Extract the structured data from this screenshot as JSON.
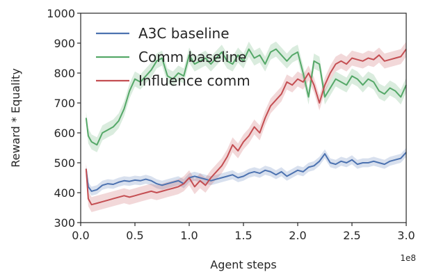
{
  "chart_data": {
    "type": "line",
    "xlabel": "Agent steps",
    "ylabel": "Reward * Equality",
    "x_offset_label": "1e8",
    "xlim": [
      0.0,
      3.0
    ],
    "ylim": [
      300,
      1000
    ],
    "x_ticks": [
      0.0,
      0.5,
      1.0,
      1.5,
      2.0,
      2.5,
      3.0
    ],
    "x_tick_labels": [
      "0.0",
      "0.5",
      "1.0",
      "1.5",
      "2.0",
      "2.5",
      "3.0"
    ],
    "y_ticks": [
      300,
      400,
      500,
      600,
      700,
      800,
      900,
      1000
    ],
    "y_tick_labels": [
      "300",
      "400",
      "500",
      "600",
      "700",
      "800",
      "900",
      "1000"
    ],
    "grid": false,
    "legend": "top-left",
    "series": [
      {
        "name": "A3C baseline",
        "color": "#4c72b0",
        "x": [
          0.05,
          0.07,
          0.1,
          0.15,
          0.2,
          0.25,
          0.3,
          0.35,
          0.4,
          0.45,
          0.5,
          0.55,
          0.6,
          0.65,
          0.7,
          0.75,
          0.8,
          0.85,
          0.9,
          0.95,
          1.0,
          1.05,
          1.1,
          1.15,
          1.2,
          1.25,
          1.3,
          1.35,
          1.4,
          1.45,
          1.5,
          1.55,
          1.6,
          1.65,
          1.7,
          1.75,
          1.8,
          1.85,
          1.9,
          1.95,
          2.0,
          2.05,
          2.1,
          2.15,
          2.2,
          2.25,
          2.3,
          2.35,
          2.4,
          2.45,
          2.5,
          2.55,
          2.6,
          2.65,
          2.7,
          2.75,
          2.8,
          2.85,
          2.9,
          2.95,
          3.0
        ],
        "values": [
          480,
          420,
          405,
          410,
          425,
          430,
          428,
          435,
          440,
          438,
          442,
          440,
          445,
          440,
          430,
          425,
          430,
          435,
          440,
          430,
          450,
          455,
          450,
          445,
          440,
          445,
          450,
          455,
          460,
          450,
          455,
          465,
          470,
          465,
          475,
          470,
          460,
          470,
          455,
          465,
          475,
          470,
          485,
          490,
          505,
          530,
          500,
          495,
          505,
          500,
          510,
          495,
          500,
          500,
          505,
          500,
          495,
          505,
          510,
          515,
          535
        ],
        "band": [
          12,
          15,
          15,
          15,
          15,
          15,
          15,
          15,
          15,
          15,
          15,
          15,
          15,
          15,
          15,
          15,
          15,
          15,
          15,
          15,
          15,
          15,
          15,
          15,
          15,
          15,
          15,
          15,
          15,
          15,
          15,
          15,
          15,
          15,
          15,
          15,
          15,
          15,
          15,
          15,
          15,
          15,
          15,
          15,
          15,
          15,
          15,
          15,
          15,
          15,
          15,
          15,
          15,
          15,
          15,
          15,
          15,
          15,
          15,
          15,
          15
        ]
      },
      {
        "name": "Comm baseline",
        "color": "#55a868",
        "x": [
          0.05,
          0.07,
          0.1,
          0.15,
          0.2,
          0.25,
          0.3,
          0.35,
          0.4,
          0.45,
          0.5,
          0.55,
          0.6,
          0.65,
          0.7,
          0.75,
          0.8,
          0.85,
          0.9,
          0.95,
          1.0,
          1.05,
          1.1,
          1.15,
          1.2,
          1.25,
          1.3,
          1.35,
          1.4,
          1.45,
          1.5,
          1.55,
          1.6,
          1.65,
          1.7,
          1.75,
          1.8,
          1.85,
          1.9,
          1.95,
          2.0,
          2.05,
          2.1,
          2.15,
          2.2,
          2.25,
          2.3,
          2.35,
          2.4,
          2.45,
          2.5,
          2.55,
          2.6,
          2.65,
          2.7,
          2.75,
          2.8,
          2.85,
          2.9,
          2.95,
          3.0
        ],
        "values": [
          650,
          590,
          570,
          560,
          600,
          610,
          620,
          640,
          680,
          740,
          780,
          770,
          790,
          810,
          840,
          850,
          790,
          780,
          800,
          790,
          860,
          830,
          840,
          850,
          830,
          850,
          870,
          840,
          830,
          860,
          840,
          880,
          850,
          860,
          830,
          870,
          880,
          860,
          840,
          860,
          870,
          800,
          720,
          840,
          830,
          720,
          750,
          780,
          770,
          760,
          790,
          780,
          760,
          780,
          770,
          740,
          730,
          750,
          740,
          720,
          760
        ],
        "band": [
          20,
          25,
          25,
          25,
          25,
          25,
          25,
          25,
          25,
          25,
          25,
          25,
          25,
          25,
          25,
          25,
          25,
          25,
          25,
          25,
          25,
          25,
          25,
          25,
          25,
          25,
          25,
          25,
          25,
          25,
          25,
          25,
          25,
          25,
          25,
          25,
          25,
          25,
          25,
          25,
          25,
          25,
          25,
          25,
          25,
          25,
          25,
          25,
          25,
          25,
          25,
          25,
          25,
          25,
          25,
          25,
          25,
          25,
          25,
          25,
          25
        ]
      },
      {
        "name": "Influence comm",
        "color": "#c44e52",
        "x": [
          0.05,
          0.07,
          0.1,
          0.15,
          0.2,
          0.25,
          0.3,
          0.35,
          0.4,
          0.45,
          0.5,
          0.55,
          0.6,
          0.65,
          0.7,
          0.75,
          0.8,
          0.85,
          0.9,
          0.95,
          1.0,
          1.05,
          1.1,
          1.15,
          1.2,
          1.25,
          1.3,
          1.35,
          1.4,
          1.45,
          1.5,
          1.55,
          1.6,
          1.65,
          1.7,
          1.75,
          1.8,
          1.85,
          1.9,
          1.95,
          2.0,
          2.05,
          2.1,
          2.15,
          2.2,
          2.25,
          2.3,
          2.35,
          2.4,
          2.45,
          2.5,
          2.55,
          2.6,
          2.65,
          2.7,
          2.75,
          2.8,
          2.85,
          2.9,
          2.95,
          3.0
        ],
        "values": [
          480,
          380,
          360,
          365,
          370,
          375,
          380,
          385,
          390,
          385,
          390,
          395,
          400,
          405,
          400,
          405,
          410,
          415,
          420,
          430,
          450,
          420,
          440,
          425,
          450,
          470,
          490,
          520,
          560,
          540,
          570,
          590,
          620,
          600,
          650,
          690,
          710,
          730,
          770,
          760,
          780,
          770,
          800,
          760,
          700,
          760,
          800,
          830,
          840,
          830,
          850,
          845,
          840,
          850,
          845,
          860,
          840,
          845,
          850,
          855,
          880
        ],
        "band": [
          20,
          25,
          25,
          25,
          25,
          25,
          25,
          25,
          25,
          25,
          25,
          25,
          25,
          25,
          25,
          25,
          25,
          25,
          25,
          25,
          25,
          25,
          25,
          25,
          25,
          25,
          25,
          25,
          25,
          25,
          25,
          25,
          25,
          25,
          25,
          25,
          25,
          25,
          25,
          25,
          25,
          25,
          25,
          25,
          25,
          25,
          25,
          25,
          25,
          25,
          25,
          25,
          25,
          25,
          25,
          25,
          25,
          25,
          25,
          25,
          25
        ]
      }
    ]
  }
}
